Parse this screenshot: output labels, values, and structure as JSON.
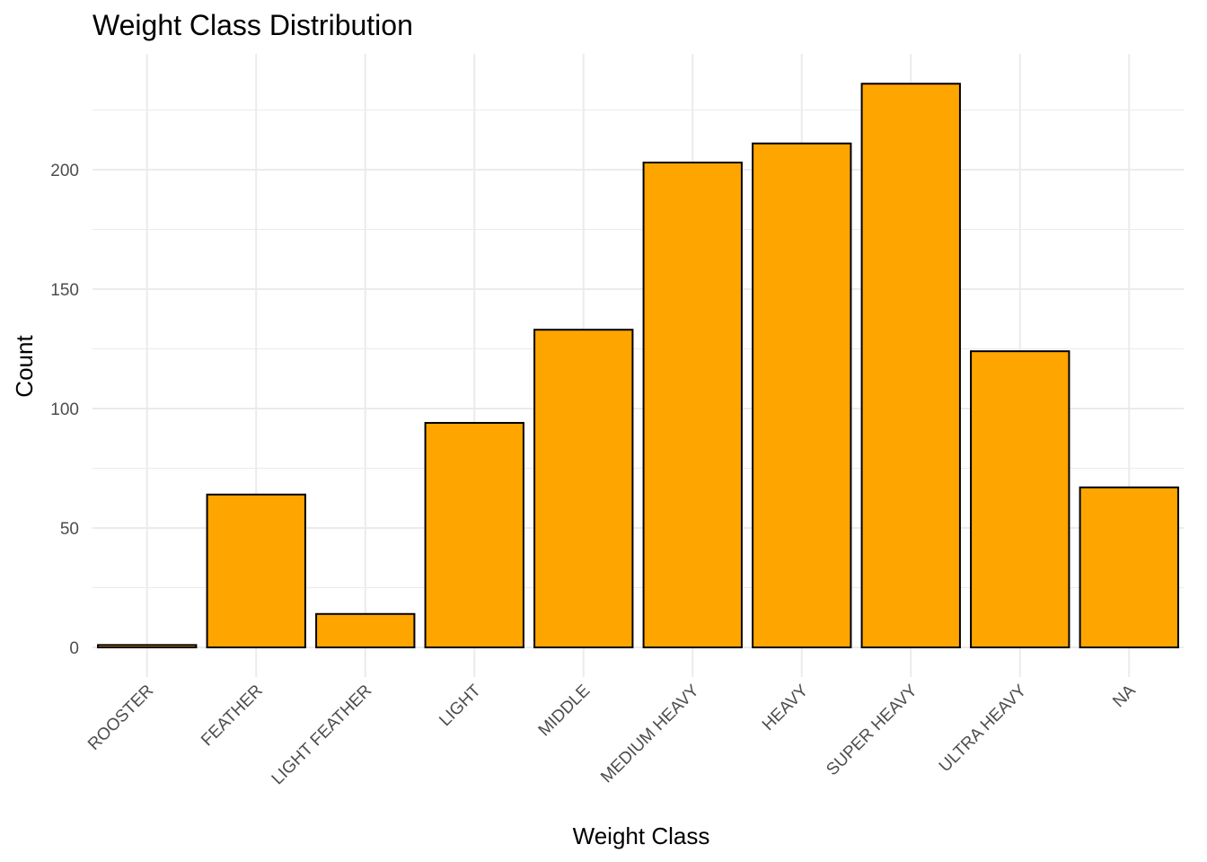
{
  "chart_data": {
    "type": "bar",
    "title": "Weight Class Distribution",
    "xlabel": "Weight Class",
    "ylabel": "Count",
    "categories": [
      "ROOSTER",
      "FEATHER",
      "LIGHT FEATHER",
      "LIGHT",
      "MIDDLE",
      "MEDIUM HEAVY",
      "HEAVY",
      "SUPER HEAVY",
      "ULTRA HEAVY",
      "NA"
    ],
    "values": [
      1,
      64,
      14,
      94,
      133,
      203,
      211,
      236,
      124,
      67
    ],
    "ylim": [
      0,
      248
    ],
    "yticks": [
      0,
      50,
      100,
      150,
      200
    ],
    "bar_fill": "#FFA500",
    "bar_stroke": "#000000",
    "grid": true,
    "legend": "none"
  }
}
